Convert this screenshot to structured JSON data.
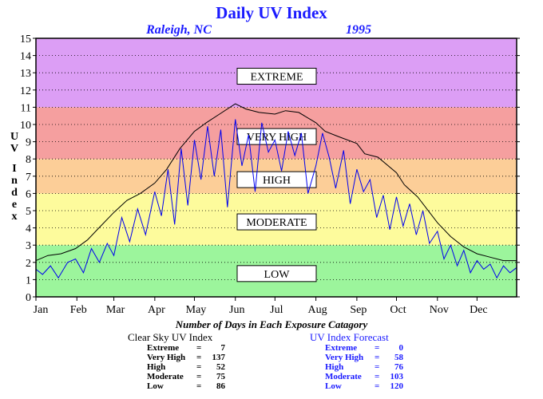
{
  "title": "Daily UV Index",
  "location": "Raleigh, NC",
  "year": "1995",
  "ylabel_letters": [
    "U",
    "V",
    "",
    "I",
    "n",
    "d",
    "e",
    "x"
  ],
  "colors": {
    "low": "#9cf59c",
    "moderate": "#fdfb9c",
    "high": "#fcce98",
    "very_high": "#f59f9f",
    "extreme": "#dc9ef5",
    "title": "#1a1aff",
    "forecast_line": "#0000ee",
    "clear_line": "#000000"
  },
  "categories": [
    {
      "key": "low",
      "label": "LOW",
      "from": 0,
      "to": 3
    },
    {
      "key": "moderate",
      "label": "MODERATE",
      "from": 3,
      "to": 6
    },
    {
      "key": "high",
      "label": "HIGH",
      "from": 6,
      "to": 8
    },
    {
      "key": "very_high",
      "label": "VERY HIGH",
      "from": 8,
      "to": 11
    },
    {
      "key": "extreme",
      "label": "EXTREME",
      "from": 11,
      "to": 15
    }
  ],
  "summary_title": "Number of Days in Each Exposure Catagory",
  "clear_sky": {
    "title": "Clear Sky UV Index",
    "rows": [
      {
        "label": "Extreme",
        "value": "7"
      },
      {
        "label": "Very High",
        "value": "137"
      },
      {
        "label": "High",
        "value": "52"
      },
      {
        "label": "Moderate",
        "value": "75"
      },
      {
        "label": "Low",
        "value": "86"
      }
    ]
  },
  "forecast": {
    "title": "UV Index Forecast",
    "rows": [
      {
        "label": "Extreme",
        "value": "0"
      },
      {
        "label": "Very High",
        "value": "58"
      },
      {
        "label": "High",
        "value": "76"
      },
      {
        "label": "Moderate",
        "value": "103"
      },
      {
        "label": "Low",
        "value": "120"
      }
    ]
  },
  "chart_data": {
    "type": "line",
    "title": "Daily UV Index",
    "xlabel": "",
    "ylabel": "UV Index",
    "ylim": [
      0,
      15
    ],
    "xlim": [
      1,
      365
    ],
    "yticks": [
      0,
      1,
      2,
      3,
      4,
      5,
      6,
      7,
      8,
      9,
      10,
      11,
      12,
      13,
      14,
      15
    ],
    "xtick_labels": [
      "Jan",
      "Feb",
      "Mar",
      "Apr",
      "May",
      "Jun",
      "Jul",
      "Aug",
      "Sep",
      "Oct",
      "Nov",
      "Dec"
    ],
    "xtick_days": [
      1,
      32,
      60,
      91,
      121,
      152,
      182,
      213,
      244,
      274,
      305,
      335
    ],
    "grid": "horizontal dotted",
    "series": [
      {
        "name": "Clear Sky UV Index",
        "x": [
          1,
          10,
          20,
          31,
          40,
          50,
          60,
          70,
          80,
          91,
          100,
          110,
          121,
          130,
          140,
          152,
          160,
          170,
          182,
          190,
          200,
          213,
          220,
          230,
          244,
          250,
          260,
          274,
          280,
          290,
          305,
          315,
          325,
          335,
          345,
          355,
          365
        ],
        "values": [
          2.1,
          2.4,
          2.5,
          2.8,
          3.3,
          4.1,
          4.9,
          5.6,
          6.0,
          6.6,
          7.4,
          8.6,
          9.6,
          10.1,
          10.6,
          11.2,
          10.9,
          10.7,
          10.6,
          10.8,
          10.7,
          10.1,
          9.6,
          9.3,
          8.9,
          8.3,
          8.1,
          7.2,
          6.5,
          5.8,
          4.3,
          3.5,
          2.9,
          2.5,
          2.3,
          2.1,
          2.1
        ]
      },
      {
        "name": "UV Index Forecast",
        "x": [
          1,
          6,
          12,
          18,
          25,
          31,
          37,
          43,
          49,
          55,
          60,
          66,
          72,
          78,
          84,
          91,
          96,
          101,
          106,
          111,
          116,
          121,
          126,
          131,
          136,
          141,
          146,
          152,
          157,
          162,
          167,
          172,
          177,
          182,
          187,
          192,
          197,
          202,
          207,
          213,
          218,
          223,
          228,
          234,
          239,
          244,
          249,
          254,
          259,
          264,
          269,
          274,
          279,
          284,
          289,
          294,
          299,
          305,
          310,
          315,
          320,
          325,
          330,
          335,
          340,
          345,
          350,
          355,
          360,
          365
        ],
        "values": [
          1.6,
          1.3,
          1.8,
          1.1,
          2.0,
          2.2,
          1.4,
          2.8,
          2.0,
          3.1,
          2.4,
          4.6,
          3.2,
          5.1,
          3.6,
          6.1,
          4.7,
          7.4,
          4.2,
          8.6,
          5.3,
          9.1,
          6.8,
          9.9,
          7.0,
          9.7,
          5.2,
          10.3,
          7.6,
          9.4,
          6.1,
          10.1,
          8.4,
          9.1,
          7.3,
          9.6,
          8.2,
          9.5,
          6.0,
          7.6,
          9.5,
          8.1,
          6.3,
          8.5,
          5.4,
          7.4,
          6.1,
          6.8,
          4.6,
          5.9,
          3.9,
          5.8,
          4.1,
          5.4,
          3.6,
          5.0,
          3.1,
          3.8,
          2.2,
          3.0,
          1.8,
          2.7,
          1.4,
          2.1,
          1.6,
          1.9,
          1.1,
          1.8,
          1.4,
          1.7
        ]
      }
    ]
  }
}
